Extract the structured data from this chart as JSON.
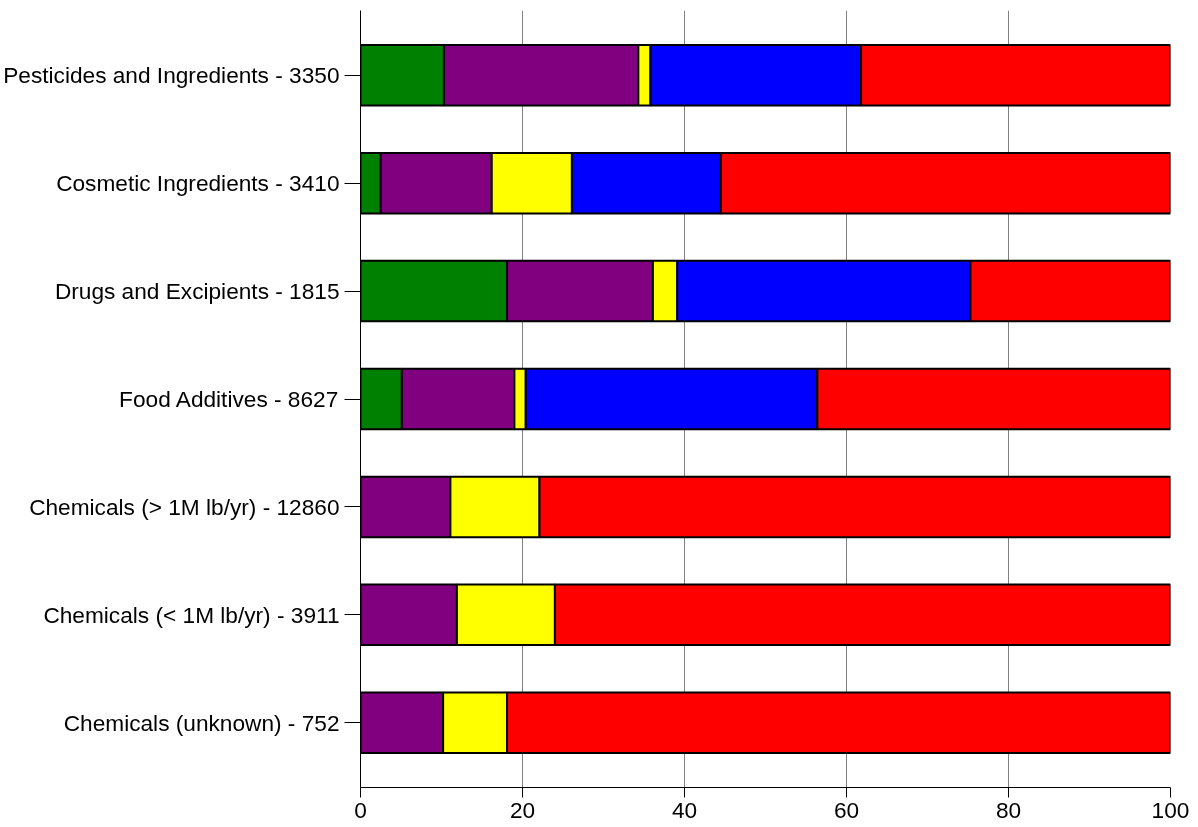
{
  "chart_data": {
    "type": "bar",
    "orientation": "horizontal",
    "stacked": true,
    "categories": [
      "Pesticides and Ingredients - 3350",
      "Cosmetic Ingredients - 3410",
      "Drugs and Excipients - 1815",
      "Food Additives - 8627",
      "Chemicals (> 1M lb/yr) - 12860",
      "Chemicals (< 1M lb/yr) - 3911",
      "Chemicals (unknown) - 752"
    ],
    "series": [
      {
        "color": "#008000",
        "values": [
          10.3,
          2.5,
          18.1,
          5.1,
          null,
          null,
          null
        ]
      },
      {
        "color": "#800080",
        "values": [
          24.0,
          13.7,
          18.0,
          13.9,
          11.1,
          11.9,
          10.2
        ]
      },
      {
        "color": "#ffff00",
        "values": [
          1.5,
          9.9,
          3.0,
          1.4,
          11.0,
          12.1,
          7.9
        ]
      },
      {
        "color": "#0000ff",
        "values": [
          26.0,
          18.4,
          36.2,
          36.0,
          null,
          null,
          null
        ]
      },
      {
        "color": "#ff0000",
        "values": [
          38.2,
          55.5,
          24.7,
          43.6,
          77.9,
          76.0,
          81.9
        ]
      }
    ],
    "xlim": [
      0,
      100
    ],
    "xticks": [
      0,
      20,
      40,
      60,
      80,
      100
    ],
    "grid": "x"
  }
}
